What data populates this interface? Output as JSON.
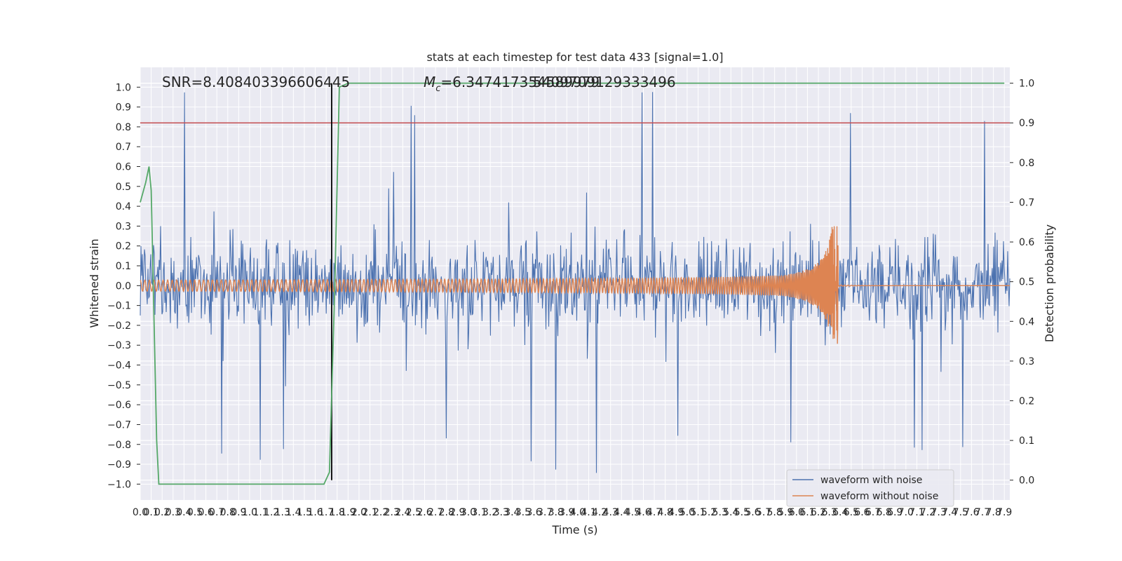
{
  "chart_data": {
    "type": "line",
    "title": "stats at each timestep for test data 433 [signal=1.0]",
    "xlabel": "Time (s)",
    "ylabel": "Whitened strain",
    "y2label": "Detection probability",
    "xlim": [
      0.0,
      7.95
    ],
    "ylim": [
      -1.08,
      1.1
    ],
    "y2lim": [
      -0.05,
      1.04
    ],
    "grid": true,
    "legend_position": "lower-right",
    "annotations": {
      "snr": "SNR=8.408403396606445",
      "mc": "M_c=6.347417354589979",
      "mc_overlap": "5409709129333496"
    },
    "x_ticks": [
      "0.0",
      "0.1",
      "0.2",
      "0.3",
      "0.4",
      "0.5",
      "0.6",
      "0.7",
      "0.8",
      "0.9",
      "1.0",
      "1.1",
      "1.2",
      "1.3",
      "1.4",
      "1.5",
      "1.6",
      "1.7",
      "1.8",
      "1.9",
      "2.0",
      "2.1",
      "2.2",
      "2.3",
      "2.4",
      "2.5",
      "2.6",
      "2.7",
      "2.8",
      "2.9",
      "3.0",
      "3.1",
      "3.2",
      "3.3",
      "3.4",
      "3.5",
      "3.6",
      "3.7",
      "3.8",
      "3.9",
      "4.0",
      "4.1",
      "4.2",
      "4.3",
      "4.4",
      "4.5",
      "4.6",
      "4.7",
      "4.8",
      "4.9",
      "5.0",
      "5.1",
      "5.2",
      "5.3",
      "5.4",
      "5.5",
      "5.6",
      "5.7",
      "5.8",
      "5.9",
      "6.0",
      "6.1",
      "6.2",
      "6.3",
      "6.4",
      "6.5",
      "6.6",
      "6.7",
      "6.8",
      "6.9",
      "7.0",
      "7.1",
      "7.2",
      "7.3",
      "7.4",
      "7.5",
      "7.6",
      "7.7",
      "7.8",
      "7.9"
    ],
    "y_ticks": [
      "1.0",
      "0.9",
      "0.8",
      "0.7",
      "0.6",
      "0.5",
      "0.4",
      "0.3",
      "0.2",
      "0.1",
      "0.0",
      "−0.1",
      "−0.2",
      "−0.3",
      "−0.4",
      "−0.5",
      "−0.6",
      "−0.7",
      "−0.8",
      "−0.9",
      "−1.0"
    ],
    "y2_ticks": [
      "1.0",
      "0.9",
      "0.8",
      "0.7",
      "0.6",
      "0.5",
      "0.4",
      "0.3",
      "0.2",
      "0.1",
      "0.0"
    ],
    "series": [
      {
        "name": "waveform with noise",
        "color": "#4c72b0",
        "description": "whitened strain noise, amplitude ~0.3 typical with spikes up to 1.0"
      },
      {
        "name": "waveform without noise",
        "color": "#dd8452",
        "chirp_start": 0.0,
        "chirp_end": 6.38,
        "peak_amplitude": 0.3
      },
      {
        "name": "",
        "color": "#55a868",
        "axis": "right",
        "x": [
          0.0,
          0.05,
          0.08,
          0.1,
          0.15,
          0.17,
          0.2,
          0.3,
          0.6,
          0.7,
          1.0,
          1.3,
          1.6,
          1.68,
          1.73,
          1.78,
          1.82,
          1.9,
          3.0,
          5.0,
          7.9
        ],
        "values": [
          0.7,
          0.75,
          0.79,
          0.73,
          0.1,
          -0.01,
          -0.01,
          -0.01,
          -0.01,
          -0.01,
          -0.01,
          -0.01,
          -0.01,
          -0.01,
          0.02,
          0.5,
          0.99,
          1.0,
          1.0,
          1.0,
          1.0
        ]
      }
    ],
    "threshold": {
      "value": 0.9,
      "axis": "right",
      "color": "#c44e52"
    },
    "vline": {
      "x": 1.75,
      "color": "#000000"
    }
  }
}
